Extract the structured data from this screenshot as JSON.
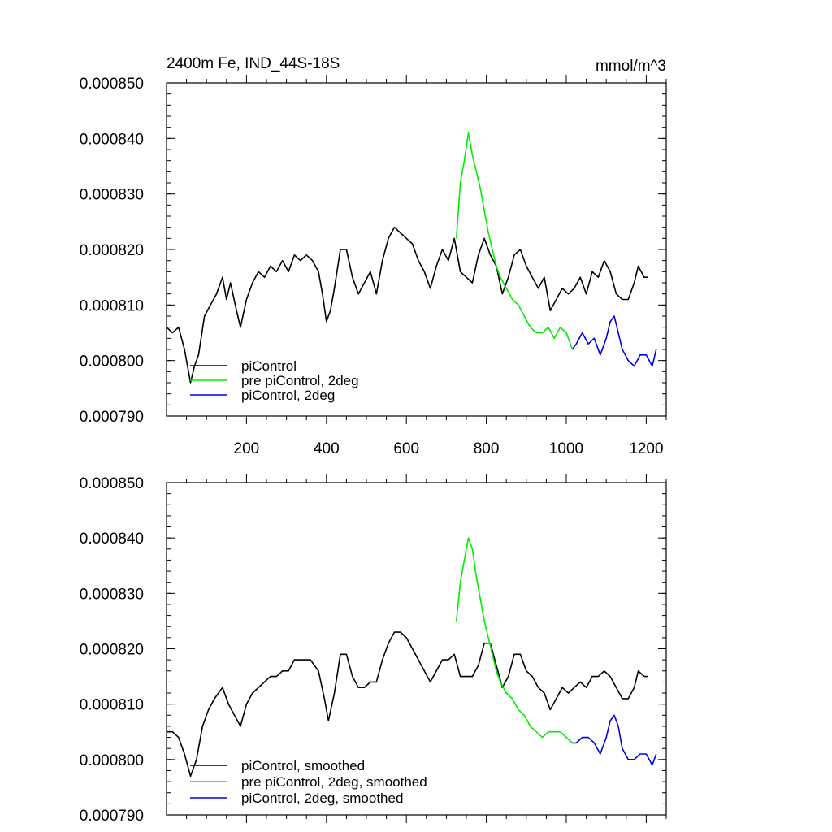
{
  "colors": {
    "piControl": "#000000",
    "pre": "#00ee00",
    "pi2deg": "#0000ee"
  },
  "chart_data": [
    {
      "type": "line",
      "title": "2400m Fe, IND_44S-18S",
      "units": "mmol/m^3",
      "xlim": [
        0,
        1250
      ],
      "ylim": [
        0.00079,
        0.00085
      ],
      "x_ticks": [
        200,
        400,
        600,
        800,
        1000,
        1200
      ],
      "y_ticks": [
        "0.000850",
        "0.000840",
        "0.000830",
        "0.000820",
        "0.000810",
        "0.000800",
        "0.000790"
      ],
      "legend": [
        "piControl",
        "pre piControl, 2deg",
        "piControl, 2deg"
      ],
      "legend_position": "lower-left",
      "series": [
        {
          "name": "piControl",
          "color": "#000000",
          "points": [
            [
              0,
              0.000806
            ],
            [
              15,
              0.000805
            ],
            [
              30,
              0.000806
            ],
            [
              45,
              0.000802
            ],
            [
              60,
              0.000796
            ],
            [
              70,
              0.000799
            ],
            [
              80,
              0.000801
            ],
            [
              95,
              0.000808
            ],
            [
              110,
              0.00081
            ],
            [
              125,
              0.000812
            ],
            [
              140,
              0.000815
            ],
            [
              150,
              0.000811
            ],
            [
              160,
              0.000814
            ],
            [
              175,
              0.000809
            ],
            [
              185,
              0.000806
            ],
            [
              200,
              0.000811
            ],
            [
              215,
              0.000814
            ],
            [
              230,
              0.000816
            ],
            [
              245,
              0.000815
            ],
            [
              260,
              0.000817
            ],
            [
              275,
              0.000816
            ],
            [
              290,
              0.000818
            ],
            [
              305,
              0.000816
            ],
            [
              320,
              0.000819
            ],
            [
              335,
              0.000818
            ],
            [
              350,
              0.000819
            ],
            [
              365,
              0.000818
            ],
            [
              380,
              0.000816
            ],
            [
              390,
              0.000812
            ],
            [
              400,
              0.000807
            ],
            [
              410,
              0.000809
            ],
            [
              420,
              0.000813
            ],
            [
              435,
              0.00082
            ],
            [
              450,
              0.00082
            ],
            [
              465,
              0.000815
            ],
            [
              480,
              0.000812
            ],
            [
              495,
              0.000814
            ],
            [
              510,
              0.000816
            ],
            [
              525,
              0.000812
            ],
            [
              540,
              0.000818
            ],
            [
              555,
              0.000822
            ],
            [
              570,
              0.000824
            ],
            [
              585,
              0.000823
            ],
            [
              600,
              0.000822
            ],
            [
              615,
              0.000821
            ],
            [
              630,
              0.000818
            ],
            [
              645,
              0.000816
            ],
            [
              660,
              0.000813
            ],
            [
              675,
              0.000817
            ],
            [
              690,
              0.00082
            ],
            [
              705,
              0.000818
            ],
            [
              720,
              0.000822
            ],
            [
              735,
              0.000816
            ],
            [
              750,
              0.000815
            ],
            [
              765,
              0.000814
            ],
            [
              780,
              0.000819
            ],
            [
              795,
              0.000822
            ],
            [
              810,
              0.000819
            ],
            [
              825,
              0.000817
            ],
            [
              840,
              0.000812
            ],
            [
              855,
              0.000815
            ],
            [
              870,
              0.000819
            ],
            [
              885,
              0.00082
            ],
            [
              900,
              0.000817
            ],
            [
              915,
              0.000815
            ],
            [
              930,
              0.000813
            ],
            [
              945,
              0.000815
            ],
            [
              960,
              0.000809
            ],
            [
              975,
              0.000811
            ],
            [
              990,
              0.000813
            ],
            [
              1005,
              0.000812
            ],
            [
              1020,
              0.000813
            ],
            [
              1035,
              0.000815
            ],
            [
              1050,
              0.000812
            ],
            [
              1065,
              0.000816
            ],
            [
              1080,
              0.000815
            ],
            [
              1095,
              0.000818
            ],
            [
              1110,
              0.000816
            ],
            [
              1125,
              0.000812
            ],
            [
              1140,
              0.000811
            ],
            [
              1155,
              0.000811
            ],
            [
              1170,
              0.000814
            ],
            [
              1180,
              0.000817
            ],
            [
              1195,
              0.000815
            ],
            [
              1205,
              0.000815
            ]
          ]
        },
        {
          "name": "pre piControl, 2deg",
          "color": "#00ee00",
          "points": [
            [
              725,
              0.000822
            ],
            [
              735,
              0.000832
            ],
            [
              745,
              0.000836
            ],
            [
              755,
              0.000841
            ],
            [
              765,
              0.000837
            ],
            [
              775,
              0.000834
            ],
            [
              785,
              0.000831
            ],
            [
              795,
              0.000827
            ],
            [
              805,
              0.000823
            ],
            [
              815,
              0.00082
            ],
            [
              825,
              0.000817
            ],
            [
              835,
              0.000815
            ],
            [
              850,
              0.000813
            ],
            [
              865,
              0.000811
            ],
            [
              880,
              0.00081
            ],
            [
              895,
              0.000808
            ],
            [
              910,
              0.000806
            ],
            [
              925,
              0.000805
            ],
            [
              940,
              0.000805
            ],
            [
              955,
              0.000806
            ],
            [
              970,
              0.000804
            ],
            [
              985,
              0.000806
            ],
            [
              1000,
              0.000805
            ],
            [
              1015,
              0.000802
            ]
          ]
        },
        {
          "name": "piControl, 2deg",
          "color": "#0000ee",
          "points": [
            [
              1015,
              0.000802
            ],
            [
              1025,
              0.000803
            ],
            [
              1040,
              0.000805
            ],
            [
              1055,
              0.000803
            ],
            [
              1070,
              0.000804
            ],
            [
              1085,
              0.000801
            ],
            [
              1100,
              0.000804
            ],
            [
              1110,
              0.000807
            ],
            [
              1120,
              0.000808
            ],
            [
              1130,
              0.000805
            ],
            [
              1140,
              0.000802
            ],
            [
              1155,
              0.0008
            ],
            [
              1170,
              0.000799
            ],
            [
              1185,
              0.000801
            ],
            [
              1200,
              0.000801
            ],
            [
              1215,
              0.000799
            ],
            [
              1225,
              0.000802
            ]
          ]
        }
      ]
    },
    {
      "type": "line",
      "title": "",
      "units": "",
      "xlim": [
        0,
        1250
      ],
      "ylim": [
        0.00079,
        0.00085
      ],
      "x_ticks": [],
      "y_ticks": [
        "0.000850",
        "0.000840",
        "0.000830",
        "0.000820",
        "0.000810",
        "0.000800",
        "0.000790"
      ],
      "legend": [
        "piControl, smoothed",
        "pre piControl, 2deg, smoothed",
        "piControl, 2deg, smoothed"
      ],
      "legend_position": "lower-left",
      "series": [
        {
          "name": "piControl, smoothed",
          "color": "#000000",
          "points": [
            [
              0,
              0.000805
            ],
            [
              15,
              0.000805
            ],
            [
              30,
              0.000804
            ],
            [
              45,
              0.000801
            ],
            [
              60,
              0.000797
            ],
            [
              75,
              0.0008
            ],
            [
              90,
              0.000806
            ],
            [
              105,
              0.000809
            ],
            [
              120,
              0.000811
            ],
            [
              140,
              0.000813
            ],
            [
              155,
              0.00081
            ],
            [
              170,
              0.000808
            ],
            [
              185,
              0.000806
            ],
            [
              200,
              0.00081
            ],
            [
              215,
              0.000812
            ],
            [
              230,
              0.000813
            ],
            [
              245,
              0.000814
            ],
            [
              260,
              0.000815
            ],
            [
              275,
              0.000815
            ],
            [
              290,
              0.000816
            ],
            [
              305,
              0.000816
            ],
            [
              320,
              0.000818
            ],
            [
              340,
              0.000818
            ],
            [
              360,
              0.000818
            ],
            [
              380,
              0.000816
            ],
            [
              395,
              0.000811
            ],
            [
              405,
              0.000807
            ],
            [
              420,
              0.000812
            ],
            [
              435,
              0.000819
            ],
            [
              450,
              0.000819
            ],
            [
              465,
              0.000815
            ],
            [
              480,
              0.000813
            ],
            [
              495,
              0.000813
            ],
            [
              510,
              0.000814
            ],
            [
              525,
              0.000814
            ],
            [
              540,
              0.000818
            ],
            [
              555,
              0.000821
            ],
            [
              570,
              0.000823
            ],
            [
              585,
              0.000823
            ],
            [
              600,
              0.000822
            ],
            [
              615,
              0.00082
            ],
            [
              630,
              0.000818
            ],
            [
              645,
              0.000816
            ],
            [
              660,
              0.000814
            ],
            [
              675,
              0.000816
            ],
            [
              690,
              0.000818
            ],
            [
              705,
              0.000818
            ],
            [
              720,
              0.000819
            ],
            [
              735,
              0.000815
            ],
            [
              750,
              0.000815
            ],
            [
              765,
              0.000815
            ],
            [
              780,
              0.000817
            ],
            [
              795,
              0.000821
            ],
            [
              810,
              0.000821
            ],
            [
              825,
              0.000817
            ],
            [
              840,
              0.000813
            ],
            [
              855,
              0.000815
            ],
            [
              870,
              0.000819
            ],
            [
              885,
              0.000819
            ],
            [
              900,
              0.000816
            ],
            [
              915,
              0.000815
            ],
            [
              930,
              0.000813
            ],
            [
              945,
              0.000812
            ],
            [
              960,
              0.000809
            ],
            [
              975,
              0.000811
            ],
            [
              990,
              0.000813
            ],
            [
              1005,
              0.000812
            ],
            [
              1020,
              0.000813
            ],
            [
              1035,
              0.000814
            ],
            [
              1050,
              0.000813
            ],
            [
              1065,
              0.000815
            ],
            [
              1080,
              0.000815
            ],
            [
              1095,
              0.000816
            ],
            [
              1110,
              0.000815
            ],
            [
              1125,
              0.000813
            ],
            [
              1140,
              0.000811
            ],
            [
              1155,
              0.000811
            ],
            [
              1170,
              0.000813
            ],
            [
              1180,
              0.000816
            ],
            [
              1195,
              0.000815
            ],
            [
              1205,
              0.000815
            ]
          ]
        },
        {
          "name": "pre piControl, 2deg, smoothed",
          "color": "#00ee00",
          "points": [
            [
              725,
              0.000825
            ],
            [
              735,
              0.000832
            ],
            [
              745,
              0.000836
            ],
            [
              755,
              0.00084
            ],
            [
              765,
              0.000838
            ],
            [
              775,
              0.000833
            ],
            [
              785,
              0.000829
            ],
            [
              795,
              0.000825
            ],
            [
              805,
              0.000822
            ],
            [
              815,
              0.000819
            ],
            [
              825,
              0.000816
            ],
            [
              835,
              0.000814
            ],
            [
              850,
              0.000812
            ],
            [
              865,
              0.000811
            ],
            [
              880,
              0.000809
            ],
            [
              895,
              0.000808
            ],
            [
              910,
              0.000806
            ],
            [
              925,
              0.000805
            ],
            [
              940,
              0.000804
            ],
            [
              955,
              0.000805
            ],
            [
              970,
              0.000805
            ],
            [
              985,
              0.000805
            ],
            [
              1000,
              0.000804
            ],
            [
              1015,
              0.000803
            ]
          ]
        },
        {
          "name": "piControl, 2deg, smoothed",
          "color": "#0000ee",
          "points": [
            [
              1015,
              0.000803
            ],
            [
              1025,
              0.000803
            ],
            [
              1040,
              0.000804
            ],
            [
              1055,
              0.000804
            ],
            [
              1070,
              0.000803
            ],
            [
              1085,
              0.000801
            ],
            [
              1100,
              0.000804
            ],
            [
              1110,
              0.000807
            ],
            [
              1120,
              0.000808
            ],
            [
              1130,
              0.000806
            ],
            [
              1140,
              0.000802
            ],
            [
              1155,
              0.0008
            ],
            [
              1170,
              0.0008
            ],
            [
              1185,
              0.000801
            ],
            [
              1200,
              0.000801
            ],
            [
              1215,
              0.000799
            ],
            [
              1225,
              0.000801
            ]
          ]
        }
      ]
    }
  ]
}
